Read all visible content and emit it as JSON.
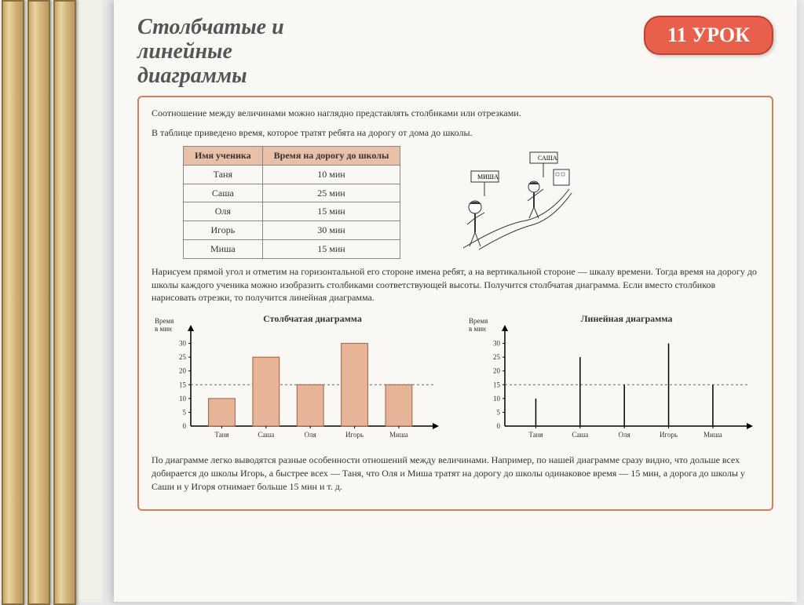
{
  "header": {
    "title_line1": "Столбчатые и",
    "title_line2": "линейные",
    "title_line3": "диаграммы",
    "lesson_badge": "11 УРОК"
  },
  "intro": {
    "p1": "Соотношение между величинами можно наглядно представлять столбиками или отрезками.",
    "p2": "В таблице приведено время, которое тратят ребята на дорогу от дома до школы."
  },
  "table": {
    "col1": "Имя ученика",
    "col2": "Время на дорогу до школы",
    "rows": [
      {
        "name": "Таня",
        "time": "10 мин"
      },
      {
        "name": "Саша",
        "time": "25 мин"
      },
      {
        "name": "Оля",
        "time": "15 мин"
      },
      {
        "name": "Игорь",
        "time": "30 мин"
      },
      {
        "name": "Миша",
        "time": "15 мин"
      }
    ]
  },
  "illust_labels": {
    "sasha": "САША",
    "misha": "МИША"
  },
  "middle_para": "Нарисуем прямой угол и отметим на горизонтальной его стороне имена ребят, а на вертикальной стороне — шкалу времени. Тогда время на дорогу до школы каждого ученика можно изобразить столбиками соответствующей высоты. Получится столбчатая диаграмма. Если вместо столбиков нарисовать отрезки, то получится линейная диаграмма.",
  "chart_common": {
    "y_axis_label1": "Время",
    "y_axis_label2": "в мин",
    "categories": [
      "Таня",
      "Саша",
      "Оля",
      "Игорь",
      "Миша"
    ],
    "values": [
      10,
      25,
      15,
      30,
      15
    ],
    "ylim": [
      0,
      35
    ],
    "yticks": [
      5,
      10,
      15,
      20,
      25,
      30
    ],
    "dash_line_at": 15,
    "bar_color": "#e8b498",
    "bar_stroke": "#a06040",
    "axis_color": "#000000",
    "background": "#faf8f4",
    "bar_width": 0.6
  },
  "chart1": {
    "title": "Столбчатая диаграмма",
    "type": "bar"
  },
  "chart2": {
    "title": "Линейная диаграмма",
    "type": "line"
  },
  "final_para": "По диаграмме легко выводятся разные особенности отношений между величинами. Например, по нашей диаграмме сразу видно, что дольше всех добирается до школы Игорь, а быстрее всех — Таня, что Оля и Миша тратят на дорогу до школы одинаковое время — 15 мин, а дорога до школы у Саши и у Игоря отнимает больше 15 мин и т. д."
}
